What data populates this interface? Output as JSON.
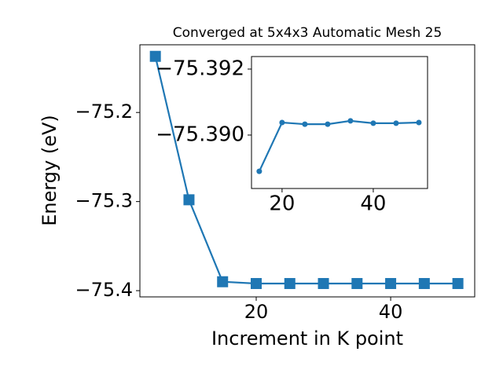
{
  "chart_data": [
    {
      "type": "line",
      "title": "Converged at 5x4x3 Automatic Mesh 25",
      "xlabel": "Increment in K point",
      "ylabel": "Energy (eV)",
      "x": [
        5,
        10,
        15,
        20,
        25,
        30,
        35,
        40,
        45,
        50
      ],
      "series": [
        {
          "color": "#1f77b4",
          "marker": "square",
          "values": [
            -75.137,
            -75.298,
            -75.39,
            -75.392,
            -75.392,
            -75.392,
            -75.392,
            -75.392,
            -75.392,
            -75.392
          ]
        }
      ],
      "xlim": [
        2.7,
        52.5
      ],
      "ylim": [
        -75.407,
        -75.124
      ],
      "xticks": [
        20,
        40
      ],
      "yticks": [
        {
          "value": -75.2,
          "label": "−75.2"
        },
        {
          "value": -75.3,
          "label": "−75.3"
        },
        {
          "value": -75.4,
          "label": "−75.4"
        }
      ],
      "grid": false
    },
    {
      "type": "line",
      "x": [
        15,
        20,
        25,
        30,
        35,
        40,
        45,
        50
      ],
      "series": [
        {
          "color": "#1f77b4",
          "marker": "circle",
          "values": [
            -75.3889,
            -75.39038,
            -75.39033,
            -75.39033,
            -75.39043,
            -75.39036,
            -75.39036,
            -75.39038
          ]
        }
      ],
      "xlim": [
        13.3,
        51.9
      ],
      "ylim": [
        -75.38838,
        -75.39238
      ],
      "xticks": [
        20,
        40
      ],
      "yticks": [
        {
          "value": -75.392,
          "label": "−75.392"
        },
        {
          "value": -75.39,
          "label": "−75.390"
        }
      ],
      "grid": false
    }
  ]
}
